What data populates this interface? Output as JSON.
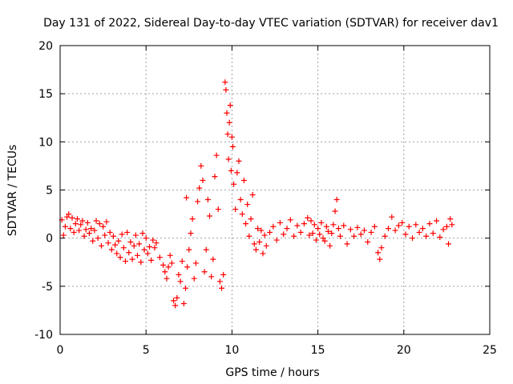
{
  "chart_data": {
    "type": "scatter",
    "title": "Day 131 of 2022, Sidereal Day-to-day VTEC variation (SDTVAR) for receiver dav1",
    "xlabel": "GPS time / hours",
    "ylabel": "SDTVAR / TECUs",
    "xlim": [
      0,
      25
    ],
    "ylim": [
      -10,
      20
    ],
    "xticks": [
      0,
      5,
      10,
      15,
      20,
      25
    ],
    "yticks": [
      -10,
      -5,
      0,
      5,
      10,
      15,
      20
    ],
    "xtick_labels": [
      "0",
      "5",
      "10",
      "15",
      "20",
      "25"
    ],
    "ytick_labels": [
      "-10",
      "-5",
      "0",
      "5",
      "10",
      "15",
      "20"
    ],
    "grid": true,
    "marker": "+",
    "series_color": "#ff0000",
    "series": [
      {
        "name": "dav1",
        "points": [
          [
            0.1,
            1.9
          ],
          [
            0.2,
            0.3
          ],
          [
            0.3,
            1.2
          ],
          [
            0.4,
            2.2
          ],
          [
            0.5,
            2.5
          ],
          [
            0.6,
            1.0
          ],
          [
            0.7,
            2.1
          ],
          [
            0.8,
            0.6
          ],
          [
            0.9,
            1.5
          ],
          [
            1.0,
            2.0
          ],
          [
            1.1,
            0.8
          ],
          [
            1.2,
            1.4
          ],
          [
            1.3,
            1.8
          ],
          [
            1.4,
            0.2
          ],
          [
            1.5,
            0.9
          ],
          [
            1.6,
            1.6
          ],
          [
            1.7,
            0.5
          ],
          [
            1.8,
            1.0
          ],
          [
            1.9,
            -0.3
          ],
          [
            2.0,
            0.8
          ],
          [
            2.1,
            1.8
          ],
          [
            2.2,
            0.0
          ],
          [
            2.3,
            1.5
          ],
          [
            2.4,
            -0.8
          ],
          [
            2.5,
            1.2
          ],
          [
            2.6,
            0.3
          ],
          [
            2.7,
            1.7
          ],
          [
            2.8,
            -0.5
          ],
          [
            2.9,
            0.6
          ],
          [
            3.0,
            -1.2
          ],
          [
            3.1,
            0.2
          ],
          [
            3.2,
            -0.7
          ],
          [
            3.3,
            -1.6
          ],
          [
            3.4,
            -0.3
          ],
          [
            3.5,
            -2.0
          ],
          [
            3.6,
            0.4
          ],
          [
            3.7,
            -1.0
          ],
          [
            3.8,
            -2.4
          ],
          [
            3.9,
            0.6
          ],
          [
            4.0,
            -1.5
          ],
          [
            4.1,
            -0.4
          ],
          [
            4.2,
            -2.2
          ],
          [
            4.3,
            -0.8
          ],
          [
            4.4,
            0.3
          ],
          [
            4.5,
            -1.8
          ],
          [
            4.6,
            -0.6
          ],
          [
            4.7,
            -2.5
          ],
          [
            4.8,
            0.5
          ],
          [
            4.9,
            -1.2
          ],
          [
            5.0,
            0.0
          ],
          [
            5.1,
            -1.6
          ],
          [
            5.2,
            -0.9
          ],
          [
            5.3,
            -2.3
          ],
          [
            5.4,
            -0.2
          ],
          [
            5.5,
            -1.0
          ],
          [
            5.6,
            -0.5
          ],
          [
            5.8,
            -2.0
          ],
          [
            6.0,
            -2.8
          ],
          [
            6.1,
            -3.5
          ],
          [
            6.2,
            -4.2
          ],
          [
            6.3,
            -3.0
          ],
          [
            6.4,
            -1.8
          ],
          [
            6.5,
            -2.6
          ],
          [
            6.6,
            -6.5
          ],
          [
            6.7,
            -7.0
          ],
          [
            6.8,
            -6.2
          ],
          [
            6.9,
            -3.8
          ],
          [
            7.0,
            -4.5
          ],
          [
            7.1,
            -2.4
          ],
          [
            7.2,
            -6.8
          ],
          [
            7.3,
            -5.2
          ],
          [
            7.35,
            4.2
          ],
          [
            7.4,
            -3.0
          ],
          [
            7.5,
            -1.2
          ],
          [
            7.6,
            0.5
          ],
          [
            7.7,
            2.0
          ],
          [
            7.8,
            -4.2
          ],
          [
            7.9,
            -2.6
          ],
          [
            8.0,
            3.8
          ],
          [
            8.1,
            5.2
          ],
          [
            8.2,
            7.5
          ],
          [
            8.3,
            6.0
          ],
          [
            8.4,
            -3.5
          ],
          [
            8.5,
            -1.2
          ],
          [
            8.6,
            4.0
          ],
          [
            8.7,
            2.3
          ],
          [
            8.8,
            -4.0
          ],
          [
            8.9,
            -2.2
          ],
          [
            9.0,
            6.4
          ],
          [
            9.1,
            8.6
          ],
          [
            9.2,
            3.0
          ],
          [
            9.3,
            -4.5
          ],
          [
            9.4,
            -5.2
          ],
          [
            9.5,
            -3.8
          ],
          [
            9.6,
            16.2
          ],
          [
            9.65,
            15.4
          ],
          [
            9.7,
            13.0
          ],
          [
            9.75,
            10.8
          ],
          [
            9.8,
            8.2
          ],
          [
            9.85,
            12.0
          ],
          [
            9.9,
            13.8
          ],
          [
            9.95,
            7.0
          ],
          [
            10.0,
            10.5
          ],
          [
            10.05,
            9.5
          ],
          [
            10.1,
            5.6
          ],
          [
            10.2,
            3.0
          ],
          [
            10.3,
            6.8
          ],
          [
            10.4,
            8.0
          ],
          [
            10.5,
            4.0
          ],
          [
            10.6,
            2.5
          ],
          [
            10.7,
            6.0
          ],
          [
            10.8,
            1.5
          ],
          [
            10.9,
            3.5
          ],
          [
            11.0,
            0.2
          ],
          [
            11.1,
            2.0
          ],
          [
            11.2,
            4.5
          ],
          [
            11.3,
            -0.6
          ],
          [
            11.4,
            -1.2
          ],
          [
            11.5,
            1.0
          ],
          [
            11.6,
            -0.4
          ],
          [
            11.7,
            0.8
          ],
          [
            11.8,
            -1.6
          ],
          [
            11.9,
            0.3
          ],
          [
            12.0,
            -0.8
          ],
          [
            12.2,
            0.6
          ],
          [
            12.4,
            1.2
          ],
          [
            12.6,
            -0.2
          ],
          [
            12.8,
            1.6
          ],
          [
            13.0,
            0.4
          ],
          [
            13.2,
            1.0
          ],
          [
            13.4,
            1.9
          ],
          [
            13.6,
            0.2
          ],
          [
            13.8,
            1.3
          ],
          [
            14.0,
            0.6
          ],
          [
            14.2,
            1.5
          ],
          [
            14.4,
            2.1
          ],
          [
            14.5,
            0.3
          ],
          [
            14.6,
            1.8
          ],
          [
            14.7,
            0.5
          ],
          [
            14.8,
            1.4
          ],
          [
            14.9,
            -0.2
          ],
          [
            15.0,
            1.0
          ],
          [
            15.1,
            0.4
          ],
          [
            15.2,
            1.6
          ],
          [
            15.3,
            0.0
          ],
          [
            15.4,
            -0.3
          ],
          [
            15.5,
            1.2
          ],
          [
            15.6,
            0.7
          ],
          [
            15.7,
            -0.8
          ],
          [
            15.8,
            0.5
          ],
          [
            15.9,
            1.4
          ],
          [
            16.0,
            2.8
          ],
          [
            16.1,
            4.0
          ],
          [
            16.2,
            1.0
          ],
          [
            16.3,
            0.2
          ],
          [
            16.5,
            1.3
          ],
          [
            16.7,
            -0.6
          ],
          [
            16.9,
            0.9
          ],
          [
            17.1,
            0.2
          ],
          [
            17.3,
            1.1
          ],
          [
            17.5,
            0.4
          ],
          [
            17.7,
            0.8
          ],
          [
            17.9,
            -0.4
          ],
          [
            18.1,
            0.6
          ],
          [
            18.3,
            1.2
          ],
          [
            18.5,
            -1.5
          ],
          [
            18.6,
            -2.2
          ],
          [
            18.7,
            -1.0
          ],
          [
            18.9,
            0.2
          ],
          [
            19.1,
            1.0
          ],
          [
            19.3,
            2.2
          ],
          [
            19.5,
            0.8
          ],
          [
            19.7,
            1.3
          ],
          [
            19.9,
            1.6
          ],
          [
            20.1,
            0.4
          ],
          [
            20.3,
            1.2
          ],
          [
            20.5,
            0.0
          ],
          [
            20.7,
            1.4
          ],
          [
            20.9,
            0.6
          ],
          [
            21.1,
            1.0
          ],
          [
            21.3,
            0.2
          ],
          [
            21.5,
            1.5
          ],
          [
            21.7,
            0.5
          ],
          [
            21.9,
            1.8
          ],
          [
            22.1,
            0.1
          ],
          [
            22.3,
            0.9
          ],
          [
            22.5,
            1.2
          ],
          [
            22.6,
            -0.6
          ],
          [
            22.7,
            2.0
          ],
          [
            22.8,
            1.4
          ]
        ]
      }
    ]
  }
}
